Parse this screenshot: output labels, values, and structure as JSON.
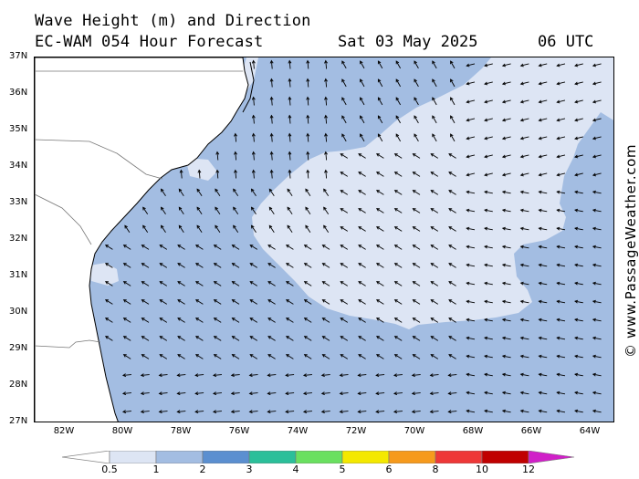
{
  "header": {
    "title_line1": "Wave Height (m) and Direction",
    "title_line2": "EC-WAM 054 Hour Forecast",
    "date": "Sat 03 May 2025",
    "time": "06 UTC"
  },
  "credit": "© www.PassageWeather.com",
  "map": {
    "lat_labels": [
      "37N",
      "36N",
      "35N",
      "34N",
      "33N",
      "32N",
      "31N",
      "30N",
      "29N",
      "28N",
      "27N"
    ],
    "lon_labels": [
      "82W",
      "80W",
      "78W",
      "76W",
      "74W",
      "72W",
      "70W",
      "68W",
      "66W",
      "64W"
    ],
    "colors": {
      "land": "#ffffff",
      "coast": "#000000",
      "wave_0_5_1": "#dde5f4",
      "wave_1_2": "#a3bde2",
      "arrow": "#000000"
    },
    "arrow_direction_note": "Arrows point NW offshore, N near Cape Hatteras, W/SW east of 70W"
  },
  "colorbar": {
    "labels": [
      "0.5",
      "1",
      "2",
      "3",
      "4",
      "5",
      "6",
      "8",
      "10",
      "12"
    ],
    "colors": [
      "#dde5f4",
      "#a3bde2",
      "#5b8fd0",
      "#2bbf9a",
      "#6ae060",
      "#f4e800",
      "#f69a1c",
      "#ee3838",
      "#c00000",
      "#d020c8"
    ]
  }
}
